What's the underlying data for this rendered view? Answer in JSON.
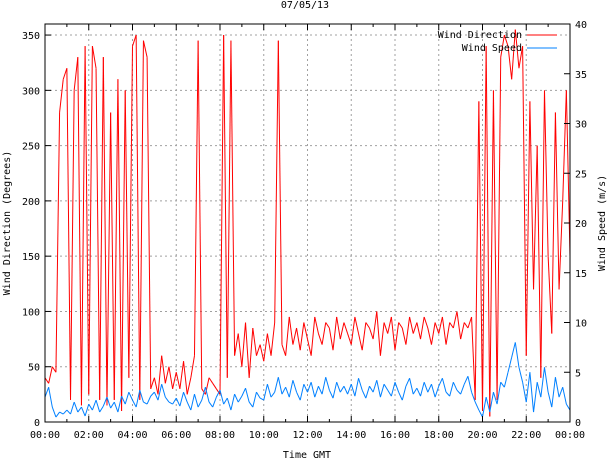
{
  "chart_data": {
    "type": "line",
    "title": "07/05/13",
    "xlabel": "Time GMT",
    "ylabel": "Wind Direction (Degrees)",
    "y2label": "Wind Speed (m/s)",
    "xlim_hours": [
      0,
      24
    ],
    "ylim": [
      0,
      360
    ],
    "y2lim": [
      0,
      40
    ],
    "grid": true,
    "legend_placement": "top-right",
    "x_tick_labels": [
      "00:00",
      "02:00",
      "04:00",
      "06:00",
      "08:00",
      "10:00",
      "12:00",
      "14:00",
      "16:00",
      "18:00",
      "20:00",
      "22:00",
      "00:00"
    ],
    "y_ticks": [
      0,
      50,
      100,
      150,
      200,
      250,
      300,
      350
    ],
    "y2_ticks": [
      0,
      5,
      10,
      15,
      20,
      25,
      30,
      35,
      40
    ],
    "sample_interval_minutes": 10,
    "series": [
      {
        "name": "Wind Direction",
        "axis": "left",
        "color": "#ff0000",
        "values": [
          40,
          35,
          50,
          45,
          280,
          310,
          320,
          20,
          300,
          330,
          15,
          340,
          25,
          340,
          320,
          20,
          330,
          15,
          280,
          20,
          310,
          10,
          300,
          40,
          340,
          350,
          20,
          345,
          330,
          30,
          40,
          25,
          60,
          35,
          50,
          30,
          45,
          30,
          55,
          25,
          40,
          60,
          345,
          30,
          25,
          40,
          35,
          30,
          25,
          350,
          40,
          345,
          60,
          80,
          50,
          90,
          40,
          85,
          60,
          70,
          55,
          80,
          60,
          90,
          345,
          70,
          60,
          95,
          70,
          85,
          65,
          90,
          75,
          60,
          95,
          80,
          70,
          90,
          85,
          65,
          95,
          75,
          90,
          80,
          70,
          95,
          80,
          65,
          90,
          85,
          75,
          100,
          60,
          90,
          80,
          95,
          65,
          90,
          85,
          70,
          95,
          80,
          90,
          75,
          95,
          85,
          70,
          90,
          80,
          95,
          70,
          90,
          85,
          100,
          75,
          90,
          85,
          95,
          20,
          290,
          10,
          340,
          5,
          300,
          20,
          330,
          350,
          340,
          310,
          355,
          320,
          340,
          60,
          290,
          120,
          250,
          40,
          300,
          150,
          80,
          280,
          120,
          200,
          300,
          150
        ]
      },
      {
        "name": "Wind Speed",
        "axis": "right",
        "color": "#0080ff",
        "values": [
          2.5,
          3.5,
          1.5,
          0.5,
          1,
          0.8,
          1.2,
          0.8,
          2,
          1,
          1.5,
          0.6,
          1.8,
          1.2,
          2.2,
          1,
          1.6,
          2.5,
          1.4,
          2,
          1,
          2.6,
          1.8,
          3,
          2.2,
          1.5,
          3.2,
          2,
          1.8,
          2.6,
          3,
          2.2,
          3.8,
          2.5,
          2,
          1.8,
          2.4,
          1.6,
          3,
          2,
          1.2,
          2.8,
          1.5,
          2.2,
          3.5,
          2,
          1.5,
          2.5,
          3.2,
          1.8,
          2.4,
          1.2,
          2.8,
          2,
          2.6,
          3.4,
          2,
          1.5,
          3,
          2.4,
          2.2,
          3.8,
          2.5,
          3,
          4.5,
          2.8,
          3.5,
          2.5,
          4.2,
          3,
          2.2,
          3.8,
          3,
          4,
          2.5,
          3.6,
          2.8,
          4.5,
          3.2,
          2.4,
          4,
          3,
          3.6,
          2.8,
          3.8,
          2.6,
          4.4,
          3.2,
          2.4,
          3.6,
          3,
          4.2,
          2.5,
          3.8,
          3.2,
          2.6,
          4,
          3,
          2.2,
          3.6,
          4.4,
          2.8,
          3.4,
          2.6,
          4,
          3,
          3.8,
          2.5,
          3.6,
          4.4,
          3,
          2.6,
          4,
          3.2,
          2.8,
          3.8,
          4.6,
          3,
          2,
          1.2,
          0.5,
          2.5,
          1,
          3,
          1.8,
          4,
          3.5,
          5,
          6.5,
          8,
          5.5,
          4,
          2,
          5,
          1,
          4,
          2.5,
          5.5,
          3,
          1.5,
          4.5,
          2.5,
          3.5,
          1.8,
          1.2
        ]
      }
    ]
  }
}
